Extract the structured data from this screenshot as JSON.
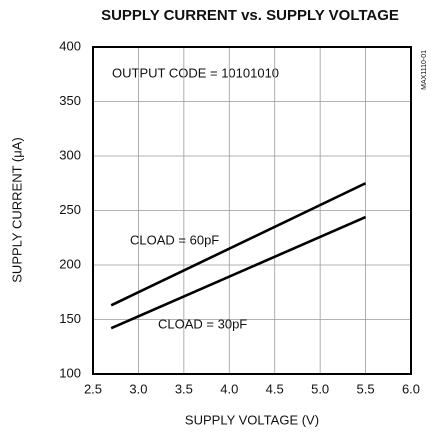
{
  "chart_data": {
    "type": "line",
    "title": "SUPPLY CURRENT vs. SUPPLY VOLTAGE",
    "x_label": "SUPPLY VOLTAGE (V)",
    "y_label": "SUPPLY CURRENT (μA)",
    "annotation": "OUTPUT CODE = 10101010",
    "figure_id": "MAX1110-01",
    "x": [
      2.7,
      5.5
    ],
    "series": [
      {
        "name": "CLOAD = 60pF",
        "color": "#000000",
        "values": [
          163,
          275
        ]
      },
      {
        "name": "CLOAD = 30pF",
        "color": "#000000",
        "values": [
          142,
          244
        ]
      }
    ],
    "xlim": [
      2.5,
      6.0
    ],
    "xticks": [
      2.5,
      {
        "value": 3.0,
        "label": "3.0"
      },
      3.5,
      {
        "value": 4.0,
        "label": "4.0"
      },
      4.5,
      {
        "value": 5.0,
        "label": "5.0"
      },
      5.5,
      {
        "value": 6.0,
        "label": "6.0"
      }
    ],
    "ylim": [
      100,
      400
    ],
    "yticks": [
      100,
      150,
      200,
      250,
      300,
      350,
      400
    ],
    "grid": true
  }
}
